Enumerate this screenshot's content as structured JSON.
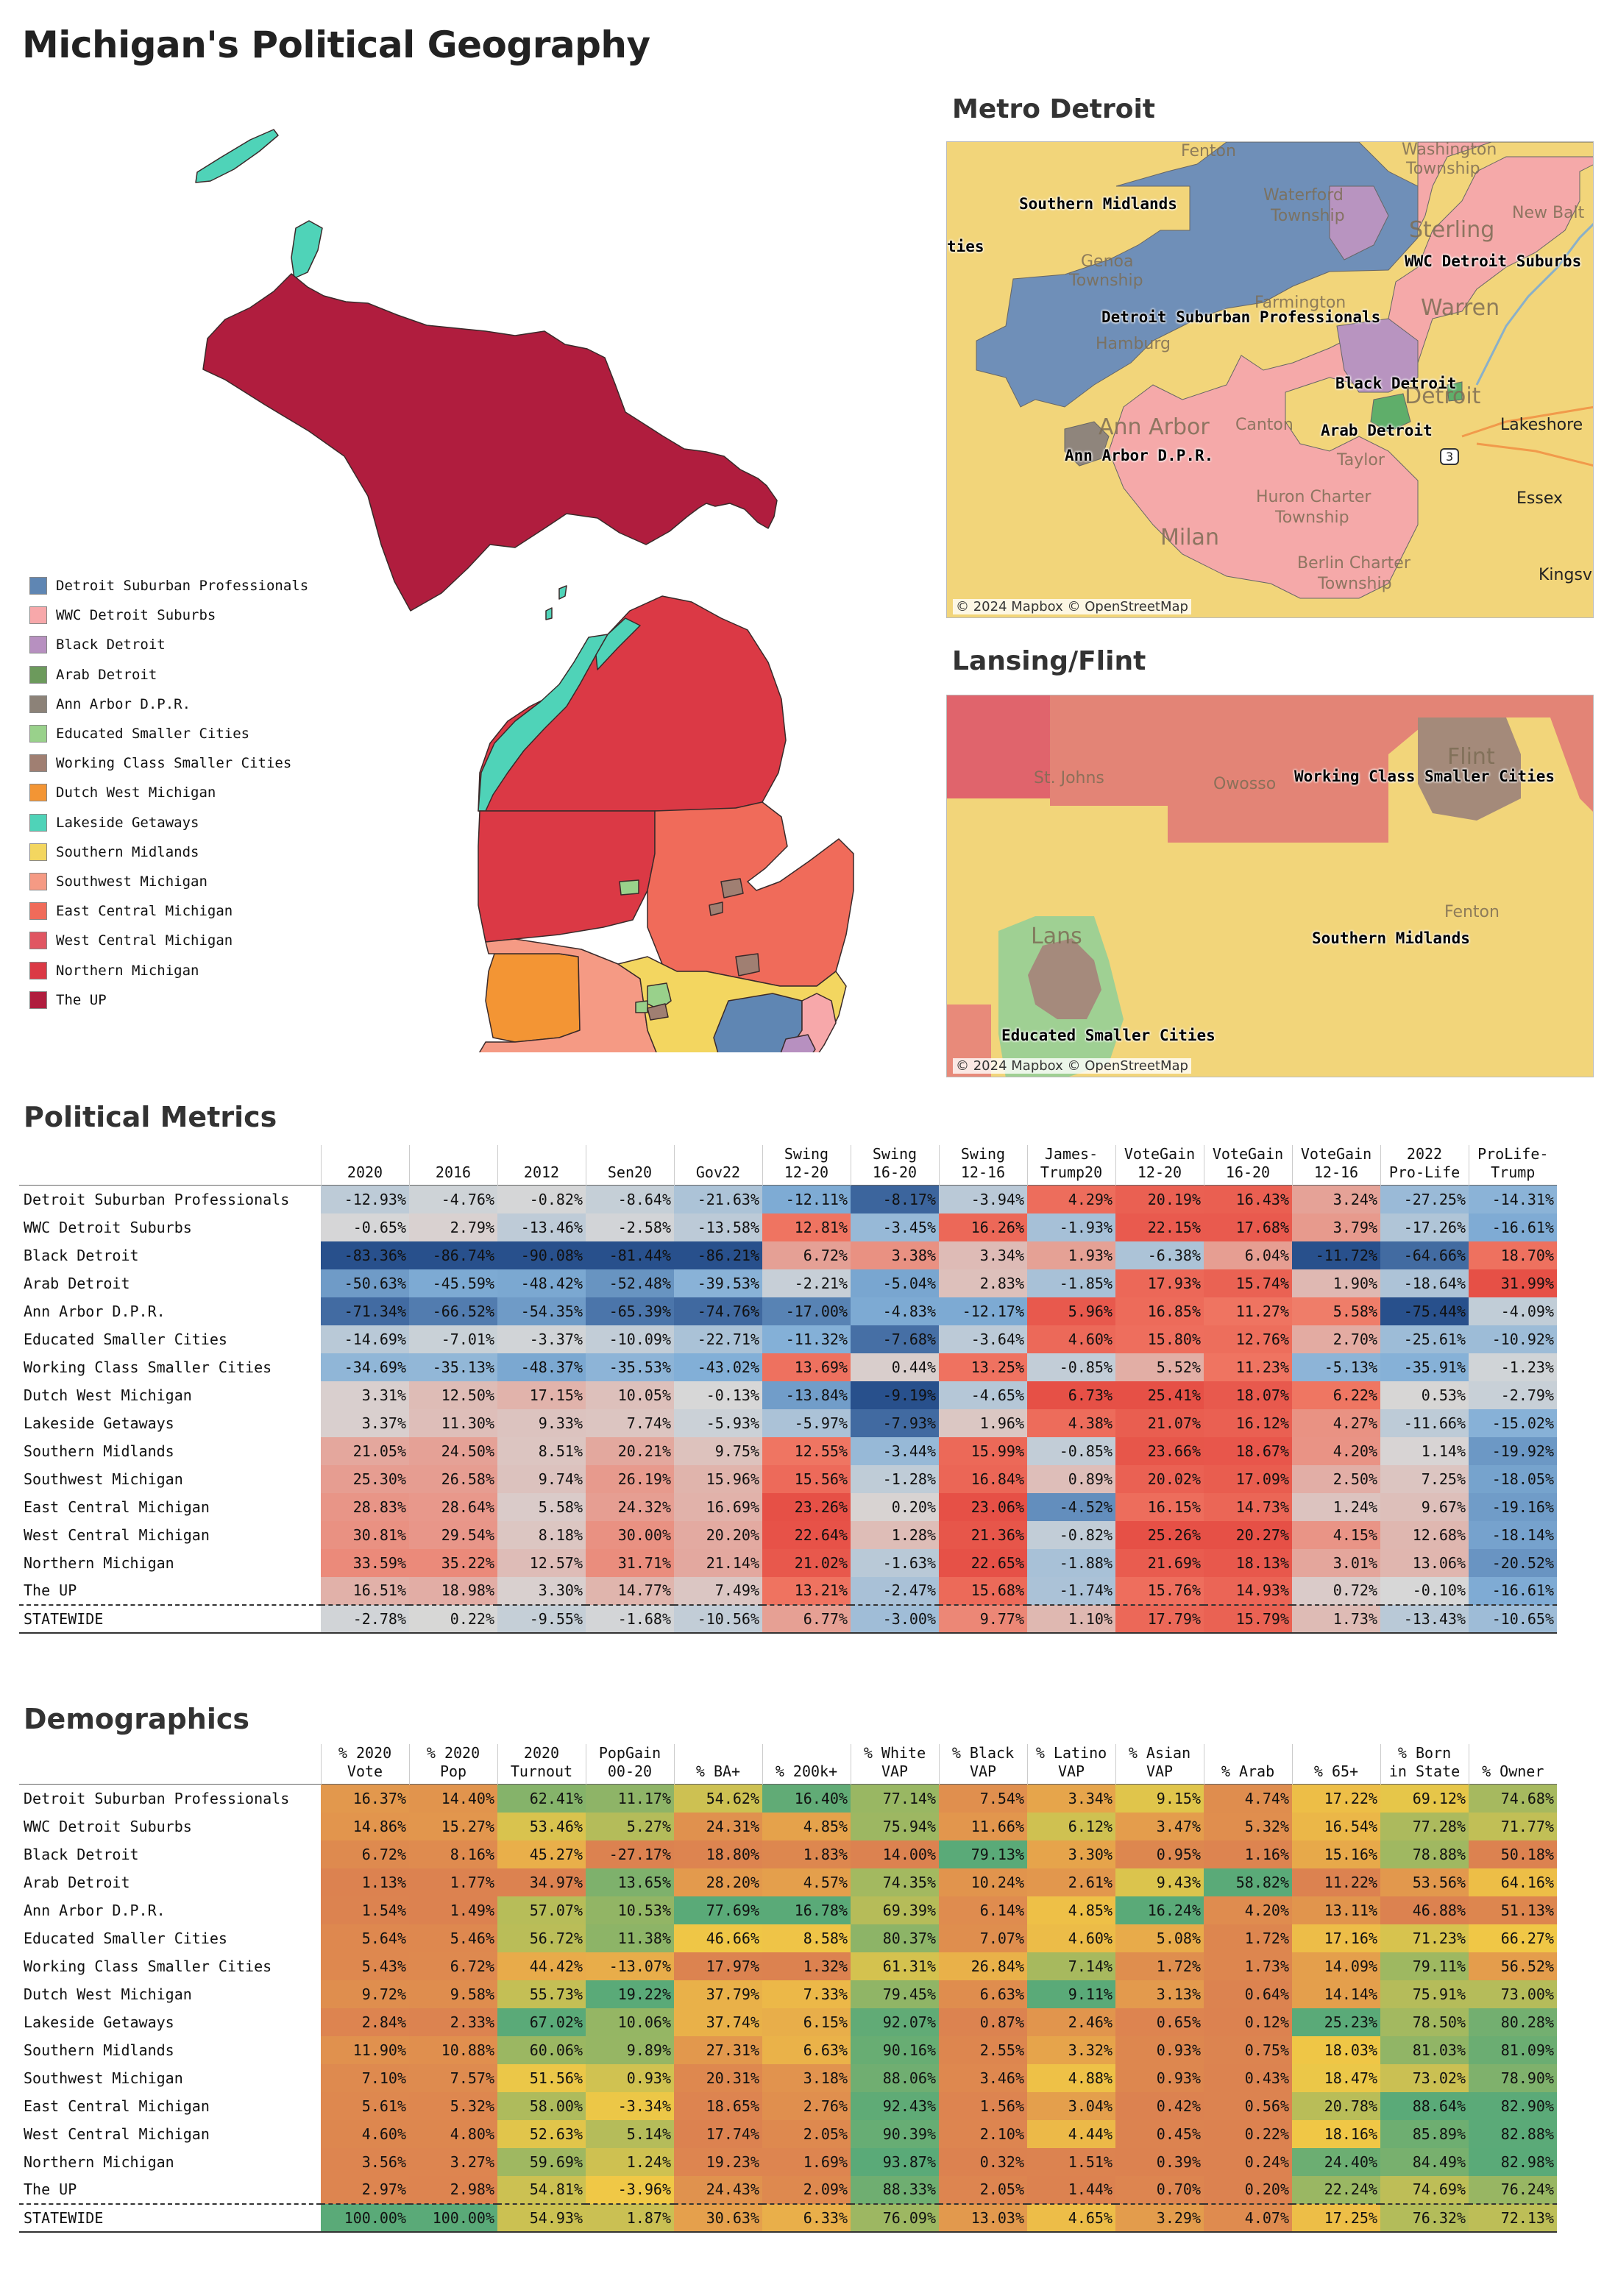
{
  "title": "Michigan's Political Geography",
  "maps": {
    "metro_title": "Metro Detroit",
    "lansing_title": "Lansing/Flint",
    "attribution": "© 2024 Mapbox © OpenStreetMap",
    "metro_labels": {
      "southern_midlands": "Southern Midlands",
      "ties": "ties",
      "wwc": "WWC Detroit Suburbs",
      "dsp": "Detroit Suburban Professionals",
      "black": "Black Detroit",
      "arab": "Arab Detroit",
      "annarbor": "Ann Arbor D.P.R."
    },
    "metro_places": {
      "fenton": "Fenton",
      "washington": "Washington",
      "township1": "Township",
      "waterford": "Waterford",
      "township2": "Township",
      "new_balt": "New Balt",
      "sterling": "Sterling",
      "genoa": "Genoa",
      "township3": "Township",
      "farmington": "Farmington",
      "warren": "Warren",
      "hamburg": "Hamburg",
      "detroit": "Detroit",
      "ann_arbor": "Ann Arbor",
      "canton": "Canton",
      "lakeshore": "Lakeshore",
      "taylor": "Taylor",
      "huron": "Huron Charter",
      "township4": "Township",
      "essex": "Essex",
      "milan": "Milan",
      "berlin": "Berlin Charter",
      "township5": "Township",
      "kingsv": "Kingsv",
      "route": "3"
    },
    "lansing_labels": {
      "wcsc": "Working Class Smaller Cities",
      "southern_midlands": "Southern Midlands",
      "esc": "Educated Smaller Cities"
    },
    "lansing_places": {
      "st_johns": "St. Johns",
      "owosso": "Owosso",
      "flint": "Flint",
      "fenton": "Fenton",
      "lansing": "Lans"
    }
  },
  "legend": [
    {
      "label": "Detroit Suburban Professionals",
      "color": "#5f86b3"
    },
    {
      "label": "WWC Detroit Suburbs",
      "color": "#f7a8aa"
    },
    {
      "label": "Black Detroit",
      "color": "#b790c0"
    },
    {
      "label": "Arab Detroit",
      "color": "#6c9a5c"
    },
    {
      "label": "Ann Arbor D.P.R.",
      "color": "#8c8278"
    },
    {
      "label": "Educated Smaller Cities",
      "color": "#99d18b"
    },
    {
      "label": "Working Class Smaller Cities",
      "color": "#a07f72"
    },
    {
      "label": "Dutch West Michigan",
      "color": "#f39534"
    },
    {
      "label": "Lakeside Getaways",
      "color": "#4fd3b8"
    },
    {
      "label": "Southern Midlands",
      "color": "#f3d660"
    },
    {
      "label": "Southwest Michigan",
      "color": "#f59a84"
    },
    {
      "label": "East Central Michigan",
      "color": "#f06b5a"
    },
    {
      "label": "West Central Michigan",
      "color": "#e05662"
    },
    {
      "label": "Northern Michigan",
      "color": "#db3945"
    },
    {
      "label": "The UP",
      "color": "#b01d3e"
    }
  ],
  "political": {
    "title": "Political Metrics",
    "headers": [
      [
        "2020"
      ],
      [
        "2016"
      ],
      [
        "2012"
      ],
      [
        "Sen20"
      ],
      [
        "Gov22"
      ],
      [
        "Swing",
        "12-20"
      ],
      [
        "Swing",
        "16-20"
      ],
      [
        "Swing",
        "12-16"
      ],
      [
        "James-",
        "Trump20"
      ],
      [
        "VoteGain",
        "12-20"
      ],
      [
        "VoteGain",
        "16-20"
      ],
      [
        "VoteGain",
        "12-16"
      ],
      [
        "2022",
        "Pro-Life"
      ],
      [
        "ProLife-",
        "Trump"
      ]
    ],
    "rows": [
      {
        "name": "Detroit Suburban Professionals",
        "values": [
          "-12.93%",
          "-4.76%",
          "-0.82%",
          "-8.64%",
          "-21.63%",
          "-12.11%",
          "-8.17%",
          "-3.94%",
          "4.29%",
          "20.19%",
          "16.43%",
          "3.24%",
          "-27.25%",
          "-14.31%"
        ]
      },
      {
        "name": "WWC Detroit Suburbs",
        "values": [
          "-0.65%",
          "2.79%",
          "-13.46%",
          "-2.58%",
          "-13.58%",
          "12.81%",
          "-3.45%",
          "16.26%",
          "-1.93%",
          "22.15%",
          "17.68%",
          "3.79%",
          "-17.26%",
          "-16.61%"
        ]
      },
      {
        "name": "Black Detroit",
        "values": [
          "-83.36%",
          "-86.74%",
          "-90.08%",
          "-81.44%",
          "-86.21%",
          "6.72%",
          "3.38%",
          "3.34%",
          "1.93%",
          "-6.38%",
          "6.04%",
          "-11.72%",
          "-64.66%",
          "18.70%"
        ]
      },
      {
        "name": "Arab Detroit",
        "values": [
          "-50.63%",
          "-45.59%",
          "-48.42%",
          "-52.48%",
          "-39.53%",
          "-2.21%",
          "-5.04%",
          "2.83%",
          "-1.85%",
          "17.93%",
          "15.74%",
          "1.90%",
          "-18.64%",
          "31.99%"
        ]
      },
      {
        "name": "Ann Arbor D.P.R.",
        "values": [
          "-71.34%",
          "-66.52%",
          "-54.35%",
          "-65.39%",
          "-74.76%",
          "-17.00%",
          "-4.83%",
          "-12.17%",
          "5.96%",
          "16.85%",
          "11.27%",
          "5.58%",
          "-75.44%",
          "-4.09%"
        ]
      },
      {
        "name": "Educated Smaller Cities",
        "values": [
          "-14.69%",
          "-7.01%",
          "-3.37%",
          "-10.09%",
          "-22.71%",
          "-11.32%",
          "-7.68%",
          "-3.64%",
          "4.60%",
          "15.80%",
          "12.76%",
          "2.70%",
          "-25.61%",
          "-10.92%"
        ]
      },
      {
        "name": "Working Class Smaller Cities",
        "values": [
          "-34.69%",
          "-35.13%",
          "-48.37%",
          "-35.53%",
          "-43.02%",
          "13.69%",
          "0.44%",
          "13.25%",
          "-0.85%",
          "5.52%",
          "11.23%",
          "-5.13%",
          "-35.91%",
          "-1.23%"
        ]
      },
      {
        "name": "Dutch West Michigan",
        "values": [
          "3.31%",
          "12.50%",
          "17.15%",
          "10.05%",
          "-0.13%",
          "-13.84%",
          "-9.19%",
          "-4.65%",
          "6.73%",
          "25.41%",
          "18.07%",
          "6.22%",
          "0.53%",
          "-2.79%"
        ]
      },
      {
        "name": "Lakeside Getaways",
        "values": [
          "3.37%",
          "11.30%",
          "9.33%",
          "7.74%",
          "-5.93%",
          "-5.97%",
          "-7.93%",
          "1.96%",
          "4.38%",
          "21.07%",
          "16.12%",
          "4.27%",
          "-11.66%",
          "-15.02%"
        ]
      },
      {
        "name": "Southern Midlands",
        "values": [
          "21.05%",
          "24.50%",
          "8.51%",
          "20.21%",
          "9.75%",
          "12.55%",
          "-3.44%",
          "15.99%",
          "-0.85%",
          "23.66%",
          "18.67%",
          "4.20%",
          "1.14%",
          "-19.92%"
        ]
      },
      {
        "name": "Southwest Michigan",
        "values": [
          "25.30%",
          "26.58%",
          "9.74%",
          "26.19%",
          "15.96%",
          "15.56%",
          "-1.28%",
          "16.84%",
          "0.89%",
          "20.02%",
          "17.09%",
          "2.50%",
          "7.25%",
          "-18.05%"
        ]
      },
      {
        "name": "East Central Michigan",
        "values": [
          "28.83%",
          "28.64%",
          "5.58%",
          "24.32%",
          "16.69%",
          "23.26%",
          "0.20%",
          "23.06%",
          "-4.52%",
          "16.15%",
          "14.73%",
          "1.24%",
          "9.67%",
          "-19.16%"
        ]
      },
      {
        "name": "West Central Michigan",
        "values": [
          "30.81%",
          "29.54%",
          "8.18%",
          "30.00%",
          "20.20%",
          "22.64%",
          "1.28%",
          "21.36%",
          "-0.82%",
          "25.26%",
          "20.27%",
          "4.15%",
          "12.68%",
          "-18.14%"
        ]
      },
      {
        "name": "Northern Michigan",
        "values": [
          "33.59%",
          "35.22%",
          "12.57%",
          "31.71%",
          "21.14%",
          "21.02%",
          "-1.63%",
          "22.65%",
          "-1.88%",
          "21.69%",
          "18.13%",
          "3.01%",
          "13.06%",
          "-20.52%"
        ]
      },
      {
        "name": "The UP",
        "values": [
          "16.51%",
          "18.98%",
          "3.30%",
          "14.77%",
          "7.49%",
          "13.21%",
          "-2.47%",
          "15.68%",
          "-1.74%",
          "15.76%",
          "14.93%",
          "0.72%",
          "-0.10%",
          "-16.61%"
        ]
      }
    ],
    "total": {
      "name": "STATEWIDE",
      "values": [
        "-2.78%",
        "0.22%",
        "-9.55%",
        "-1.68%",
        "-10.56%",
        "6.77%",
        "-3.00%",
        "9.77%",
        "1.10%",
        "17.79%",
        "15.79%",
        "1.73%",
        "-13.43%",
        "-10.65%"
      ]
    }
  },
  "demographics": {
    "title": "Demographics",
    "headers": [
      [
        "% 2020",
        "Vote"
      ],
      [
        "% 2020",
        "Pop"
      ],
      [
        "2020",
        "Turnout"
      ],
      [
        "PopGain",
        "00-20"
      ],
      [
        "% BA+"
      ],
      [
        "% 200k+"
      ],
      [
        "% White",
        "VAP"
      ],
      [
        "% Black",
        "VAP"
      ],
      [
        "% Latino",
        "VAP"
      ],
      [
        "% Asian",
        "VAP"
      ],
      [
        "% Arab"
      ],
      [
        "% 65+"
      ],
      [
        "% Born",
        "in State"
      ],
      [
        "% Owner"
      ]
    ],
    "rows": [
      {
        "name": "Detroit Suburban Professionals",
        "values": [
          "16.37%",
          "14.40%",
          "62.41%",
          "11.17%",
          "54.62%",
          "16.40%",
          "77.14%",
          "7.54%",
          "3.34%",
          "9.15%",
          "4.74%",
          "17.22%",
          "69.12%",
          "74.68%"
        ]
      },
      {
        "name": "WWC Detroit Suburbs",
        "values": [
          "14.86%",
          "15.27%",
          "53.46%",
          "5.27%",
          "24.31%",
          "4.85%",
          "75.94%",
          "11.66%",
          "6.12%",
          "3.47%",
          "5.32%",
          "16.54%",
          "77.28%",
          "71.77%"
        ]
      },
      {
        "name": "Black Detroit",
        "values": [
          "6.72%",
          "8.16%",
          "45.27%",
          "-27.17%",
          "18.80%",
          "1.83%",
          "14.00%",
          "79.13%",
          "3.30%",
          "0.95%",
          "1.16%",
          "15.16%",
          "78.88%",
          "50.18%"
        ]
      },
      {
        "name": "Arab Detroit",
        "values": [
          "1.13%",
          "1.77%",
          "34.97%",
          "13.65%",
          "28.20%",
          "4.57%",
          "74.35%",
          "10.24%",
          "2.61%",
          "9.43%",
          "58.82%",
          "11.22%",
          "53.56%",
          "64.16%"
        ]
      },
      {
        "name": "Ann Arbor D.P.R.",
        "values": [
          "1.54%",
          "1.49%",
          "57.07%",
          "10.53%",
          "77.69%",
          "16.78%",
          "69.39%",
          "6.14%",
          "4.85%",
          "16.24%",
          "4.20%",
          "13.11%",
          "46.88%",
          "51.13%"
        ]
      },
      {
        "name": "Educated Smaller Cities",
        "values": [
          "5.64%",
          "5.46%",
          "56.72%",
          "11.38%",
          "46.66%",
          "8.58%",
          "80.37%",
          "7.07%",
          "4.60%",
          "5.08%",
          "1.72%",
          "17.16%",
          "71.23%",
          "66.27%"
        ]
      },
      {
        "name": "Working Class Smaller Cities",
        "values": [
          "5.43%",
          "6.72%",
          "44.42%",
          "-13.07%",
          "17.97%",
          "1.32%",
          "61.31%",
          "26.84%",
          "7.14%",
          "1.72%",
          "1.73%",
          "14.09%",
          "79.11%",
          "56.52%"
        ]
      },
      {
        "name": "Dutch West Michigan",
        "values": [
          "9.72%",
          "9.58%",
          "55.73%",
          "19.22%",
          "37.79%",
          "7.33%",
          "79.45%",
          "6.63%",
          "9.11%",
          "3.13%",
          "0.64%",
          "14.14%",
          "75.91%",
          "73.00%"
        ]
      },
      {
        "name": "Lakeside Getaways",
        "values": [
          "2.84%",
          "2.33%",
          "67.02%",
          "10.06%",
          "37.74%",
          "6.15%",
          "92.07%",
          "0.87%",
          "2.46%",
          "0.65%",
          "0.12%",
          "25.23%",
          "78.50%",
          "80.28%"
        ]
      },
      {
        "name": "Southern Midlands",
        "values": [
          "11.90%",
          "10.88%",
          "60.06%",
          "9.89%",
          "27.31%",
          "6.63%",
          "90.16%",
          "2.55%",
          "3.32%",
          "0.93%",
          "0.75%",
          "18.03%",
          "81.03%",
          "81.09%"
        ]
      },
      {
        "name": "Southwest Michigan",
        "values": [
          "7.10%",
          "7.57%",
          "51.56%",
          "0.93%",
          "20.31%",
          "3.18%",
          "88.06%",
          "3.46%",
          "4.88%",
          "0.93%",
          "0.43%",
          "18.47%",
          "73.02%",
          "78.90%"
        ]
      },
      {
        "name": "East Central Michigan",
        "values": [
          "5.61%",
          "5.32%",
          "58.00%",
          "-3.34%",
          "18.65%",
          "2.76%",
          "92.43%",
          "1.56%",
          "3.04%",
          "0.42%",
          "0.56%",
          "20.78%",
          "88.64%",
          "82.90%"
        ]
      },
      {
        "name": "West Central Michigan",
        "values": [
          "4.60%",
          "4.80%",
          "52.63%",
          "5.14%",
          "17.74%",
          "2.05%",
          "90.39%",
          "2.10%",
          "4.44%",
          "0.45%",
          "0.22%",
          "18.16%",
          "85.89%",
          "82.88%"
        ]
      },
      {
        "name": "Northern Michigan",
        "values": [
          "3.56%",
          "3.27%",
          "59.69%",
          "1.24%",
          "19.23%",
          "1.69%",
          "93.87%",
          "0.32%",
          "1.51%",
          "0.39%",
          "0.24%",
          "24.40%",
          "84.49%",
          "82.98%"
        ]
      },
      {
        "name": "The UP",
        "values": [
          "2.97%",
          "2.98%",
          "54.81%",
          "-3.96%",
          "24.43%",
          "2.09%",
          "88.33%",
          "2.05%",
          "1.44%",
          "0.70%",
          "0.20%",
          "22.24%",
          "74.69%",
          "76.24%"
        ]
      }
    ],
    "total": {
      "name": "STATEWIDE",
      "values": [
        "100.00%",
        "100.00%",
        "54.93%",
        "1.87%",
        "30.63%",
        "6.33%",
        "76.09%",
        "13.03%",
        "4.65%",
        "3.29%",
        "4.07%",
        "17.25%",
        "76.32%",
        "72.13%"
      ]
    }
  }
}
